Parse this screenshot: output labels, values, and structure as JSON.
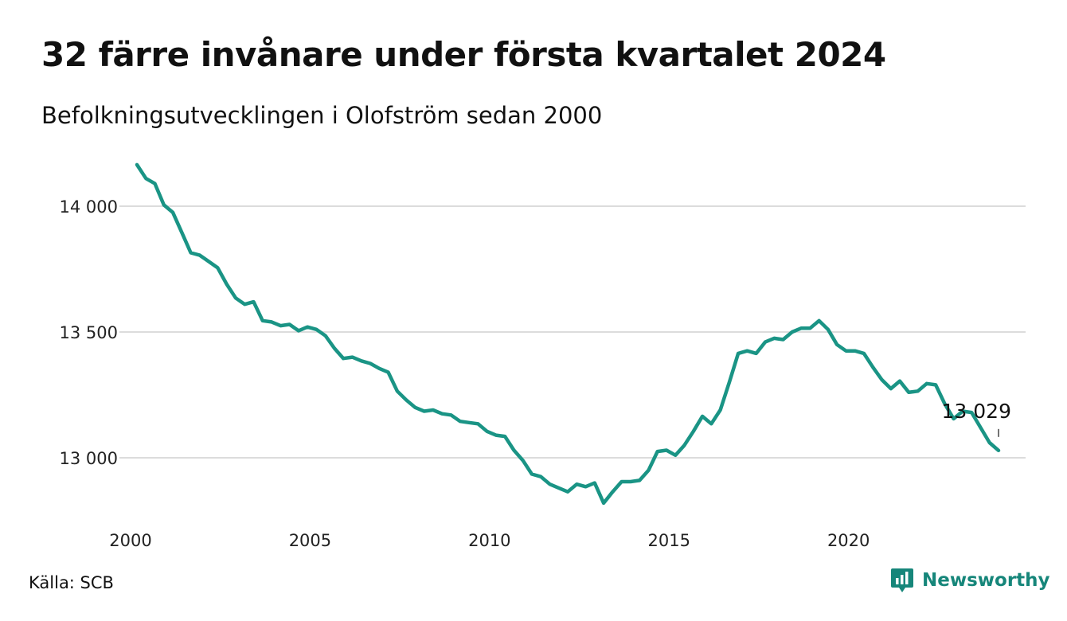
{
  "title": "32 färre invånare under första kvartalet 2024",
  "subtitle": "Befolkningsutvecklingen i Olofström sedan 2000",
  "source": "Källa: SCB",
  "brand": {
    "name": "Newsworthy",
    "icon": "newsworthy-logo-icon",
    "color": "#16867a"
  },
  "chart_data": {
    "type": "line",
    "title": "32 färre invånare under första kvartalet 2024",
    "xlabel": "",
    "ylabel": "",
    "x_start": 2000.0,
    "x_step": 0.25,
    "xlim": [
      2000,
      2024
    ],
    "ylim": [
      12780,
      14200
    ],
    "x_ticks": [
      2000,
      2005,
      2010,
      2015,
      2020
    ],
    "y_ticks": [
      13000,
      13500,
      14000
    ],
    "y_tick_labels": [
      "13 000",
      "13 500",
      "14 000"
    ],
    "grid": true,
    "line_color": "#1a9485",
    "end_label": "13 029",
    "series": [
      {
        "values": [
          14165,
          14110,
          14090,
          14005,
          13975,
          13895,
          13815,
          13805,
          13780,
          13755,
          13690,
          13635,
          13610,
          13620,
          13545,
          13540,
          13525,
          13530,
          13505,
          13520,
          13510,
          13485,
          13435,
          13395,
          13400,
          13385,
          13375,
          13355,
          13340,
          13265,
          13230,
          13200,
          13185,
          13190,
          13175,
          13170,
          13145,
          13140,
          13135,
          13105,
          13090,
          13085,
          13030,
          12990,
          12935,
          12925,
          12895,
          12880,
          12865,
          12895,
          12885,
          12900,
          12820,
          12865,
          12905,
          12905,
          12910,
          12950,
          13025,
          13030,
          13010,
          13050,
          13105,
          13165,
          13135,
          13190,
          13300,
          13415,
          13425,
          13415,
          13460,
          13475,
          13470,
          13500,
          13515,
          13515,
          13545,
          13510,
          13450,
          13425,
          13425,
          13415,
          13360,
          13310,
          13275,
          13305,
          13260,
          13265,
          13295,
          13290,
          13215,
          13155,
          13185,
          13180,
          13120,
          13060,
          13029
        ]
      }
    ]
  }
}
